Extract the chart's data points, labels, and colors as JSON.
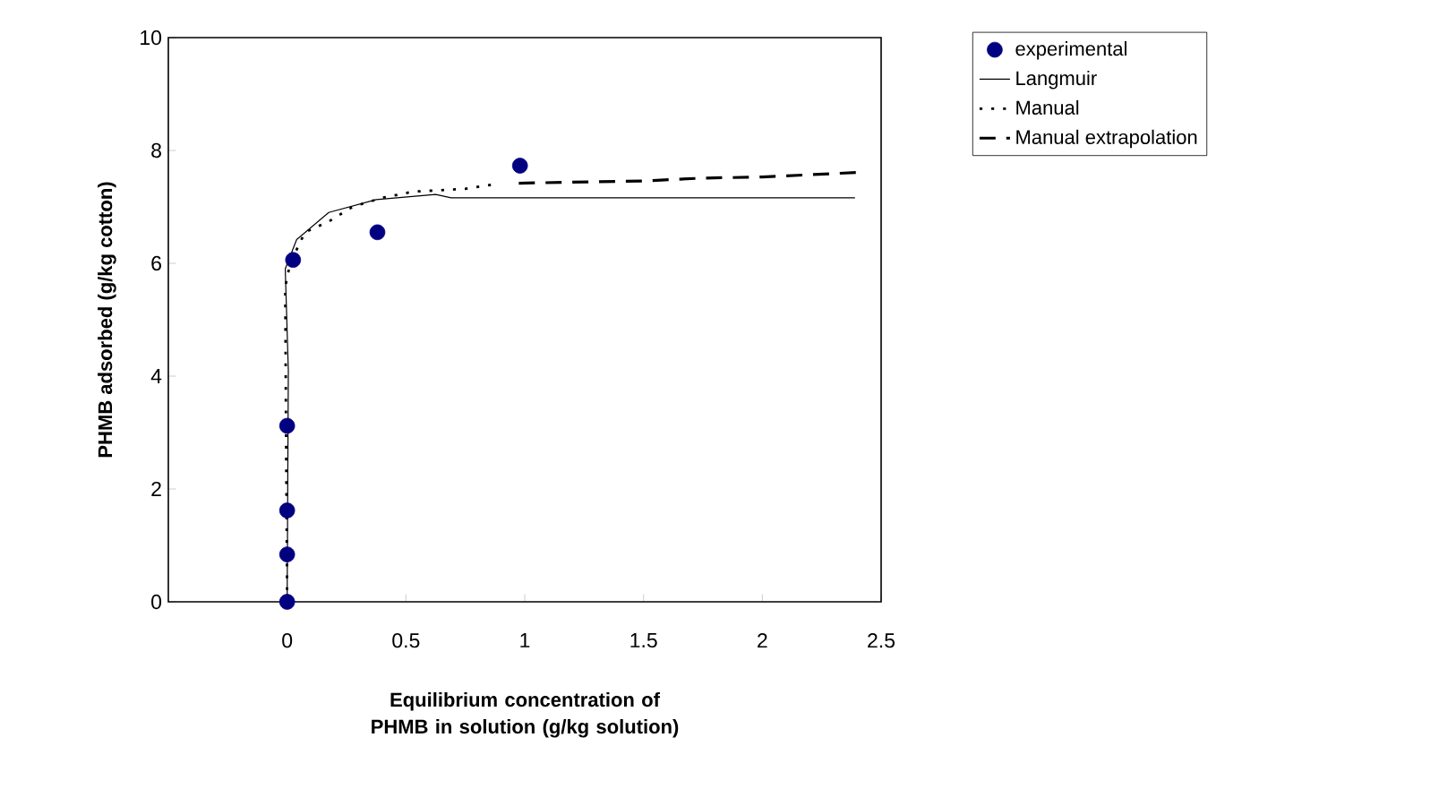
{
  "chart_data": {
    "type": "scatter",
    "xlabel": "Equilibrium concentration of PHMB in solution (g/kg solution)",
    "ylabel": "PHMB adsorbed (g/kg cotton)",
    "xlim": [
      -0.5,
      2.5
    ],
    "xticks": [
      0,
      0.5,
      1,
      1.5,
      2,
      2.5
    ],
    "ylim": [
      0,
      10
    ],
    "yticks": [
      0,
      2,
      4,
      6,
      8,
      10
    ],
    "grid": false,
    "legend": "top right",
    "series": [
      {
        "name": "experimental",
        "marker": "circle",
        "color": "#000080",
        "x": [
          0,
          0,
          0,
          0,
          0.025,
          0.38,
          0.98
        ],
        "values": [
          0,
          0.84,
          1.62,
          3.12,
          6.06,
          6.55,
          7.73
        ]
      },
      {
        "name": "Langmuir",
        "type": "line",
        "marker": "none",
        "line_style": "solid",
        "color": "#000000",
        "x": [
          0,
          0.005,
          -0.008,
          0.04,
          0.175,
          0.375,
          0.625,
          0.69,
          2.39
        ],
        "values": [
          0,
          4.1,
          5.9,
          6.42,
          6.9,
          7.13,
          7.22,
          7.16,
          7.16
        ]
      },
      {
        "name": "Manual",
        "type": "line",
        "marker": "none",
        "line_style": "dotted",
        "color": "#000000",
        "x": [
          0,
          -0.005,
          -0.008,
          0.0125,
          0.075,
          0.175,
          0.275,
          0.4,
          0.53,
          0.75,
          0.875
        ],
        "values": [
          0,
          3.25,
          5.58,
          6.0,
          6.55,
          6.74,
          7.0,
          7.16,
          7.27,
          7.32,
          7.4
        ]
      },
      {
        "name": "Manual extrapolation",
        "type": "line",
        "marker": "none",
        "line_style": "dashed",
        "color": "#000000",
        "x": [
          0.975,
          1.5,
          1.75,
          2.0,
          2.4
        ],
        "values": [
          7.42,
          7.46,
          7.51,
          7.53,
          7.61
        ]
      }
    ]
  }
}
